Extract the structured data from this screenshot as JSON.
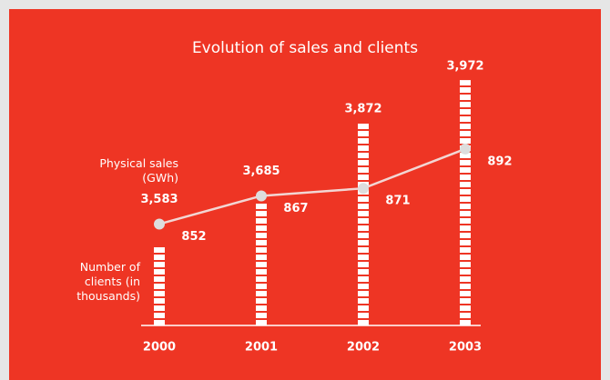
{
  "chart_data": {
    "type": "bar_line",
    "title": "Evolution of sales and clients",
    "categories": [
      "2000",
      "2001",
      "2002",
      "2003"
    ],
    "series": [
      {
        "name": "Physical sales (GWh)",
        "type": "bar",
        "color": "#ffffff",
        "values": [
          3583,
          3685,
          3872,
          3972
        ],
        "value_labels": [
          "3,583",
          "3,685",
          "3,872",
          "3,972"
        ]
      },
      {
        "name": "Number of clients (in thousands)",
        "type": "line",
        "axis": "y2",
        "color": "#f2d6d3",
        "values": [
          852,
          867,
          871,
          892
        ]
      }
    ],
    "ylim": [
      3395,
      4000
    ],
    "y2lim": [
      798,
      935
    ]
  }
}
